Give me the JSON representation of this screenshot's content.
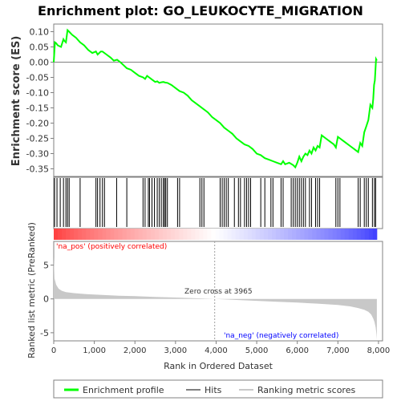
{
  "chart_data": {
    "type": "line",
    "title": "Enrichment plot: GO_LEUKOCYTE_MIGRATION",
    "top_panel": {
      "ylabel": "Enrichment score (ES)",
      "ylim": [
        -0.375,
        0.125
      ],
      "yticks": [
        "0.10",
        "0.05",
        "0.00",
        "-0.05",
        "-0.10",
        "-0.15",
        "-0.20",
        "-0.25",
        "-0.30",
        "-0.35"
      ],
      "ytick_values": [
        0.1,
        0.05,
        0.0,
        -0.05,
        -0.1,
        -0.15,
        -0.2,
        -0.25,
        -0.3,
        -0.35
      ],
      "series": [
        {
          "name": "Enrichment profile",
          "color": "#00ff00",
          "x": [
            0,
            30,
            60,
            100,
            180,
            240,
            260,
            300,
            340,
            380,
            450,
            550,
            650,
            750,
            850,
            950,
            1040,
            1080,
            1120,
            1160,
            1200,
            1300,
            1400,
            1480,
            1560,
            1640,
            1720,
            1800,
            1900,
            2000,
            2100,
            2200,
            2250,
            2300,
            2350,
            2400,
            2450,
            2500,
            2550,
            2600,
            2650,
            2700,
            2750,
            2800,
            2900,
            3000,
            3100,
            3200,
            3300,
            3400,
            3500,
            3600,
            3700,
            3800,
            3900,
            4000,
            4100,
            4200,
            4300,
            4400,
            4500,
            4600,
            4700,
            4800,
            4900,
            5000,
            5100,
            5200,
            5300,
            5400,
            5500,
            5600,
            5650,
            5700,
            5800,
            5900,
            5950,
            6000,
            6050,
            6100,
            6150,
            6200,
            6250,
            6300,
            6350,
            6400,
            6450,
            6500,
            6550,
            6600,
            6700,
            6800,
            6900,
            6950,
            7000,
            7100,
            7200,
            7300,
            7400,
            7500,
            7550,
            7600,
            7650,
            7700,
            7750,
            7800,
            7850,
            7870,
            7890,
            7910,
            7940,
            7960
          ],
          "y": [
            0.0,
            0.065,
            0.062,
            0.055,
            0.05,
            0.075,
            0.07,
            0.065,
            0.105,
            0.1,
            0.09,
            0.08,
            0.065,
            0.055,
            0.04,
            0.03,
            0.035,
            0.025,
            0.03,
            0.035,
            0.035,
            0.025,
            0.015,
            0.005,
            0.008,
            0.0,
            -0.01,
            -0.02,
            -0.025,
            -0.035,
            -0.045,
            -0.05,
            -0.055,
            -0.045,
            -0.05,
            -0.055,
            -0.06,
            -0.065,
            -0.063,
            -0.068,
            -0.066,
            -0.065,
            -0.067,
            -0.068,
            -0.075,
            -0.085,
            -0.095,
            -0.1,
            -0.11,
            -0.125,
            -0.135,
            -0.145,
            -0.155,
            -0.165,
            -0.18,
            -0.19,
            -0.2,
            -0.215,
            -0.225,
            -0.235,
            -0.25,
            -0.26,
            -0.27,
            -0.275,
            -0.285,
            -0.3,
            -0.305,
            -0.315,
            -0.32,
            -0.325,
            -0.33,
            -0.335,
            -0.325,
            -0.335,
            -0.33,
            -0.338,
            -0.345,
            -0.33,
            -0.31,
            -0.325,
            -0.31,
            -0.3,
            -0.305,
            -0.29,
            -0.3,
            -0.28,
            -0.29,
            -0.275,
            -0.28,
            -0.24,
            -0.25,
            -0.26,
            -0.27,
            -0.28,
            -0.245,
            -0.255,
            -0.265,
            -0.275,
            -0.285,
            -0.295,
            -0.265,
            -0.275,
            -0.23,
            -0.21,
            -0.19,
            -0.14,
            -0.15,
            -0.12,
            -0.075,
            -0.06,
            0.01,
            0.005
          ]
        }
      ]
    },
    "hits_panel": {
      "hits_x": [
        20,
        80,
        160,
        240,
        300,
        340,
        380,
        650,
        1040,
        1080,
        1140,
        1200,
        1250,
        1550,
        1800,
        2200,
        2250,
        2330,
        2360,
        2420,
        2480,
        2550,
        2600,
        2650,
        2700,
        2730,
        2760,
        2800,
        3050,
        3100,
        3600,
        3650,
        3700,
        4100,
        4150,
        4200,
        4250,
        4300,
        4450,
        4550,
        4600,
        4700,
        4750,
        4800,
        4850,
        5100,
        5200,
        5350,
        5400,
        5600,
        5650,
        5850,
        5900,
        5950,
        6000,
        6050,
        6100,
        6150,
        6200,
        6300,
        6350,
        6450,
        6500,
        6550,
        6950,
        7000,
        7050,
        7500,
        7550,
        7650,
        7700,
        7750,
        7850,
        7900,
        7930
      ]
    },
    "ranked_panel": {
      "ylabel": "Ranked list metric (PreRanked)",
      "xlabel": "Rank in Ordered Dataset",
      "ylim": [
        -6.2,
        8.5
      ],
      "yticks": [
        "5",
        "0",
        "-5"
      ],
      "ytick_values": [
        5,
        0,
        -5
      ],
      "xlim": [
        0,
        8100
      ],
      "xticks": [
        "0",
        "1,000",
        "2,000",
        "3,000",
        "4,000",
        "5,000",
        "6,000",
        "7,000",
        "8,000"
      ],
      "xtick_values": [
        0,
        1000,
        2000,
        3000,
        4000,
        5000,
        6000,
        7000,
        8000
      ],
      "n_genes": 7960,
      "zero_cross": 3965,
      "zero_cross_label": "Zero cross at 3965",
      "pos_label": "'na_pos' (positively correlated)",
      "neg_label": "'na_neg' (negatively correlated)",
      "metric_profile_x": [
        0,
        20,
        60,
        120,
        200,
        300,
        500,
        800,
        1200,
        1600,
        2000,
        2500,
        3000,
        3500,
        3965,
        4500,
        5000,
        5500,
        6000,
        6500,
        7000,
        7300,
        7500,
        7650,
        7750,
        7820,
        7870,
        7900,
        7930,
        7950,
        7960
      ],
      "metric_profile_y": [
        6.2,
        3.0,
        2.1,
        1.5,
        1.2,
        1.0,
        0.85,
        0.7,
        0.58,
        0.48,
        0.4,
        0.3,
        0.2,
        0.1,
        0.0,
        -0.15,
        -0.28,
        -0.42,
        -0.55,
        -0.7,
        -0.9,
        -1.1,
        -1.35,
        -1.6,
        -1.9,
        -2.3,
        -2.9,
        -3.4,
        -4.2,
        -5.2,
        -6.0
      ]
    },
    "legend": {
      "placement": "bottom",
      "items": [
        {
          "label": "Enrichment profile",
          "color": "#00ff00"
        },
        {
          "label": "Hits",
          "color": "#808080"
        },
        {
          "label": "Ranking metric scores",
          "color": "#c8c8c8"
        }
      ]
    }
  }
}
